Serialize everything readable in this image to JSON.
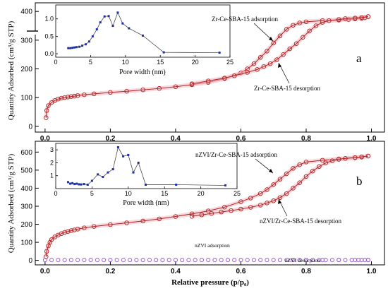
{
  "figure": {
    "ylabel_top": "Quantity Adsorbed (cm³/g STP)",
    "ylabel_bottom": "Quantity Adsorbed (cm³/g STP)",
    "xlabel": "Relative pressure (p/p₀)",
    "panel_a": "a",
    "panel_b": "b"
  },
  "colors": {
    "isotherm": "#b22222",
    "halo": "#f3b9c2",
    "nzvi": "#9a55d6",
    "pore": "#1c2fa8"
  },
  "chart_data": [
    {
      "id": "a-main",
      "type": "line",
      "title": "",
      "xlabel": "",
      "ylabel": "Quantity Adsorbed (cm³/g STP)",
      "xlim": [
        -0.03,
        1.04
      ],
      "ylim": [
        -20,
        430
      ],
      "yticks": [
        0,
        100,
        200,
        300,
        400
      ],
      "xticks": [
        "0.0",
        "0.2",
        "0.4",
        "0.6",
        "0.8",
        "1.0"
      ],
      "axis_break_y": 330,
      "series": [
        {
          "name": "Zr-Ce-SBA-15 adsorption",
          "x": [
            0.003,
            0.005,
            0.01,
            0.02,
            0.03,
            0.04,
            0.05,
            0.06,
            0.07,
            0.08,
            0.09,
            0.1,
            0.12,
            0.15,
            0.2,
            0.25,
            0.3,
            0.35,
            0.4,
            0.45,
            0.5,
            0.55,
            0.6,
            0.62,
            0.64,
            0.66,
            0.68,
            0.7,
            0.72,
            0.74,
            0.76,
            0.78,
            0.8,
            0.85,
            0.9,
            0.93,
            0.95,
            0.97,
            0.98,
            0.99
          ],
          "y": [
            30,
            55,
            72,
            83,
            90,
            95,
            98,
            100,
            102,
            104,
            105,
            107,
            110,
            113,
            118,
            122,
            127,
            132,
            138,
            145,
            153,
            166,
            186,
            200,
            218,
            240,
            262,
            290,
            315,
            338,
            352,
            360,
            364,
            368,
            370,
            372,
            374,
            376,
            378,
            382
          ]
        },
        {
          "name": "Zr-Ce-SBA-15 desorption",
          "x": [
            0.99,
            0.97,
            0.95,
            0.92,
            0.9,
            0.87,
            0.85,
            0.83,
            0.81,
            0.79,
            0.77,
            0.75,
            0.73,
            0.71,
            0.69,
            0.67,
            0.65,
            0.62,
            0.58,
            0.55,
            0.5,
            0.45
          ],
          "y": [
            382,
            379,
            377,
            375,
            372,
            368,
            362,
            350,
            332,
            310,
            288,
            270,
            250,
            232,
            218,
            208,
            198,
            188,
            176,
            168,
            158,
            148
          ]
        }
      ]
    },
    {
      "id": "a-inset",
      "type": "line",
      "title": "",
      "xlabel": "Pore width (nm)",
      "ylabel": "",
      "xlim": [
        0,
        25
      ],
      "ylim": [
        -0.1,
        1.4
      ],
      "xticks": [
        0,
        5,
        10,
        15,
        20,
        25
      ],
      "yticks": [
        "0.0",
        "0.5",
        "1.0"
      ],
      "series": [
        {
          "name": "",
          "x": [
            1.8,
            2.1,
            2.4,
            2.7,
            3.0,
            3.4,
            3.8,
            4.3,
            4.8,
            5.3,
            5.9,
            6.4,
            7.0,
            7.6,
            8.2,
            8.9,
            9.6,
            10.5,
            12.5,
            15.5,
            23.5
          ],
          "y": [
            0.16,
            0.16,
            0.17,
            0.18,
            0.19,
            0.2,
            0.23,
            0.27,
            0.35,
            0.5,
            0.7,
            0.9,
            1.07,
            1.08,
            0.8,
            1.18,
            0.87,
            0.73,
            0.52,
            0.04,
            0.03
          ]
        }
      ]
    },
    {
      "id": "b-main",
      "type": "line",
      "title": "",
      "xlabel": "Relative pressure (p/p₀)",
      "ylabel": "Quantity Adsorbed (cm³/g STP)",
      "xlim": [
        -0.03,
        1.04
      ],
      "ylim": [
        -25,
        660
      ],
      "yticks": [
        0,
        100,
        200,
        300,
        400,
        500,
        600
      ],
      "xticks": [
        "0.0",
        "0.2",
        "0.4",
        "0.6",
        "0.8",
        "1.0"
      ],
      "series": [
        {
          "name": "nZVI/Zr-Ce-SBA-15 adsorption",
          "x": [
            0.003,
            0.005,
            0.01,
            0.015,
            0.02,
            0.03,
            0.04,
            0.05,
            0.06,
            0.07,
            0.08,
            0.09,
            0.1,
            0.12,
            0.15,
            0.2,
            0.25,
            0.3,
            0.35,
            0.4,
            0.45,
            0.5,
            0.55,
            0.6,
            0.63,
            0.66,
            0.68,
            0.7,
            0.72,
            0.74,
            0.76,
            0.78,
            0.8,
            0.85,
            0.9,
            0.95,
            0.97,
            0.99
          ],
          "y": [
            20,
            50,
            80,
            100,
            115,
            130,
            140,
            148,
            155,
            160,
            165,
            169,
            173,
            180,
            188,
            198,
            208,
            218,
            230,
            243,
            258,
            274,
            295,
            325,
            345,
            370,
            392,
            420,
            450,
            480,
            510,
            530,
            545,
            555,
            562,
            568,
            572,
            578
          ]
        },
        {
          "name": "nZVI/Zr-Ce-SBA-15 desorption",
          "x": [
            0.99,
            0.97,
            0.95,
            0.92,
            0.9,
            0.88,
            0.86,
            0.84,
            0.82,
            0.8,
            0.78,
            0.76,
            0.74,
            0.72,
            0.7,
            0.68,
            0.66,
            0.63,
            0.6,
            0.57,
            0.54,
            0.51,
            0.48,
            0.45
          ],
          "y": [
            578,
            574,
            570,
            565,
            560,
            552,
            540,
            520,
            495,
            465,
            430,
            400,
            370,
            348,
            330,
            318,
            306,
            294,
            284,
            276,
            268,
            260,
            252,
            244
          ]
        },
        {
          "name": "nZVI adsorption",
          "x": [
            0.0,
            0.02,
            0.04,
            0.06,
            0.08,
            0.1,
            0.12,
            0.14,
            0.16,
            0.18,
            0.2,
            0.22,
            0.24,
            0.26,
            0.28,
            0.3,
            0.32,
            0.34,
            0.36,
            0.38,
            0.4,
            0.42,
            0.44,
            0.46,
            0.48,
            0.5,
            0.52,
            0.54,
            0.56,
            0.58,
            0.6,
            0.62,
            0.64,
            0.66,
            0.68,
            0.7,
            0.72,
            0.74,
            0.76,
            0.78,
            0.8,
            0.82,
            0.84,
            0.86,
            0.88,
            0.9,
            0.92,
            0.94,
            0.96,
            0.98,
            0.99
          ],
          "y": [
            2,
            2,
            2,
            2,
            2,
            2,
            2,
            2,
            2,
            2,
            2,
            2,
            2,
            2,
            2,
            2,
            2,
            2,
            2,
            2,
            2,
            2,
            2,
            2,
            2,
            2,
            2,
            2,
            2,
            2,
            2,
            2,
            2,
            2,
            2,
            2,
            2,
            2,
            2,
            2,
            2,
            2,
            2,
            2,
            2,
            2,
            2,
            2,
            2,
            2,
            2
          ]
        },
        {
          "name": "nZVI desorption",
          "x": [
            0.99,
            0.97,
            0.95,
            0.9,
            0.85,
            0.8,
            0.76
          ],
          "y": [
            2,
            2,
            2,
            2,
            2,
            2,
            2
          ]
        }
      ]
    },
    {
      "id": "b-inset",
      "type": "line",
      "title": "",
      "xlabel": "Pore width (nm)",
      "ylabel": "",
      "xlim": [
        0,
        25
      ],
      "ylim": [
        0,
        3.5
      ],
      "xticks": [
        0,
        5,
        10,
        15,
        20,
        25
      ],
      "yticks": [
        1,
        2,
        3
      ],
      "series": [
        {
          "name": "",
          "x": [
            1.7,
            2.0,
            2.3,
            2.6,
            2.9,
            3.2,
            3.5,
            3.9,
            4.4,
            5.0,
            5.8,
            6.5,
            7.2,
            7.9,
            8.6,
            9.3,
            10.0,
            10.7,
            11.4,
            12.4,
            16.6,
            23.4
          ],
          "y": [
            0.5,
            0.38,
            0.42,
            0.35,
            0.38,
            0.33,
            0.32,
            0.35,
            0.3,
            0.6,
            1.1,
            0.9,
            1.25,
            1.5,
            3.2,
            2.5,
            2.6,
            1.25,
            2.0,
            0.3,
            0.3,
            0.25
          ]
        }
      ]
    }
  ],
  "annotations": {
    "a_ads": "Zr-Ce-SBA-15 adsorption",
    "a_des": "Zr-Ce-SBA-15 desorption",
    "b_ads": "nZVI/Zr-Ce-SBA-15 adsorption",
    "b_des": "nZVI/Zr-Ce-SBA-15 desorption",
    "nzvi_ads": "nZVI adsorption",
    "nzvi_des": "nZVI desorption"
  }
}
